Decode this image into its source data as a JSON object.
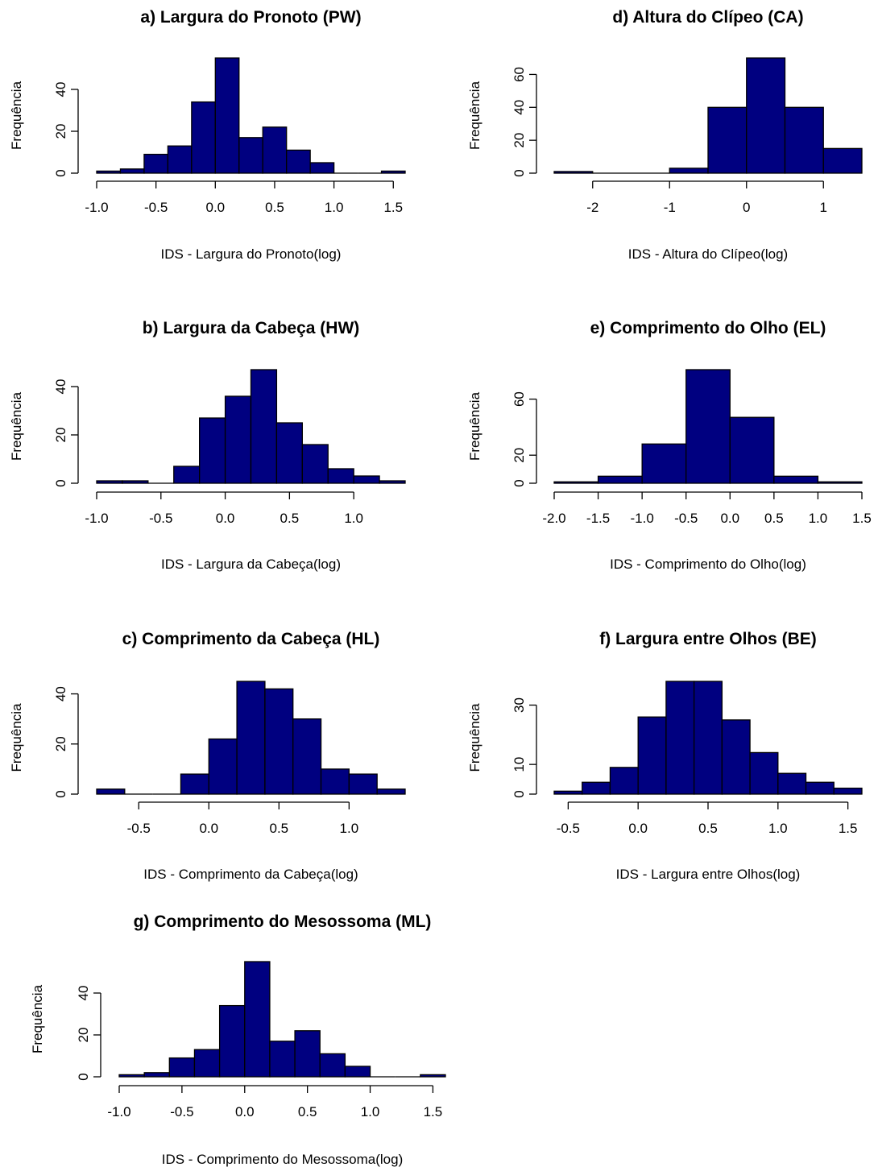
{
  "figure": {
    "bar_color": "#000080",
    "edge_color": "#000000",
    "background": "#ffffff"
  },
  "chart_data": [
    {
      "type": "bar",
      "title": "a) Largura do Pronoto (PW)",
      "xlabel": "IDS - Largura do Pronoto(log)",
      "ylabel": "Frequência",
      "xlim": [
        -1.0,
        1.6
      ],
      "ylim": [
        0,
        55
      ],
      "x_ticks": [
        -1.0,
        -0.5,
        0.0,
        0.5,
        1.0,
        1.5
      ],
      "x_tick_labels": [
        "-1.0",
        "-0.5",
        "0.0",
        "0.5",
        "1.0",
        "1.5"
      ],
      "y_ticks": [
        0,
        20,
        40
      ],
      "y_tick_labels": [
        "0",
        "20",
        "40"
      ],
      "bin_edges": [
        -1.0,
        -0.8,
        -0.6,
        -0.4,
        -0.2,
        0.0,
        0.2,
        0.4,
        0.6,
        0.8,
        1.0,
        1.2,
        1.4,
        1.6
      ],
      "values": [
        1,
        2,
        9,
        13,
        34,
        55,
        17,
        22,
        11,
        5,
        0,
        0,
        1
      ]
    },
    {
      "type": "bar",
      "title": "b) Largura da Cabeça (HW)",
      "xlabel": "IDS - Largura da Cabeça(log)",
      "ylabel": "Frequência",
      "xlim": [
        -1.0,
        1.4
      ],
      "ylim": [
        0,
        47
      ],
      "x_ticks": [
        -1.0,
        -0.5,
        0.0,
        0.5,
        1.0
      ],
      "x_tick_labels": [
        "-1.0",
        "-0.5",
        "0.0",
        "0.5",
        "1.0"
      ],
      "y_ticks": [
        0,
        20,
        40
      ],
      "y_tick_labels": [
        "0",
        "20",
        "40"
      ],
      "bin_edges": [
        -1.0,
        -0.8,
        -0.6,
        -0.4,
        -0.2,
        0.0,
        0.2,
        0.4,
        0.6,
        0.8,
        1.0,
        1.2,
        1.4
      ],
      "values": [
        1,
        1,
        0,
        7,
        27,
        36,
        47,
        25,
        16,
        6,
        3,
        1
      ]
    },
    {
      "type": "bar",
      "title": "c) Comprimento da Cabeça (HL)",
      "xlabel": "IDS - Comprimento da Cabeça(log)",
      "ylabel": "Frequência",
      "xlim": [
        -0.8,
        1.4
      ],
      "ylim": [
        0,
        45
      ],
      "x_ticks": [
        -0.5,
        0.0,
        0.5,
        1.0
      ],
      "x_tick_labels": [
        "-0.5",
        "0.0",
        "0.5",
        "1.0"
      ],
      "y_ticks": [
        0,
        20,
        40
      ],
      "y_tick_labels": [
        "0",
        "20",
        "40"
      ],
      "bin_edges": [
        -0.8,
        -0.6,
        -0.4,
        -0.2,
        0.0,
        0.2,
        0.4,
        0.6,
        0.8,
        1.0,
        1.2,
        1.4
      ],
      "values": [
        2,
        0,
        0,
        8,
        22,
        45,
        42,
        30,
        10,
        8,
        2
      ]
    },
    {
      "type": "bar",
      "title": "d) Altura do Clípeo (CA)",
      "xlabel": "IDS - Altura do Clípeo(log)",
      "ylabel": "Frequência",
      "xlim": [
        -2.5,
        1.5
      ],
      "ylim": [
        0,
        70
      ],
      "x_ticks": [
        -2,
        -1,
        0,
        1
      ],
      "x_tick_labels": [
        "-2",
        "-1",
        "0",
        "1"
      ],
      "y_ticks": [
        0,
        20,
        40,
        60
      ],
      "y_tick_labels": [
        "0",
        "20",
        "40",
        "60"
      ],
      "bin_edges": [
        -2.5,
        -2.0,
        -1.5,
        -1.0,
        -0.5,
        0.0,
        0.5,
        1.0,
        1.5
      ],
      "values": [
        1,
        0,
        0,
        3,
        40,
        70,
        40,
        15
      ]
    },
    {
      "type": "bar",
      "title": "e) Comprimento do Olho (EL)",
      "xlabel": "IDS - Comprimento do Olho(log)",
      "ylabel": "Frequência",
      "xlim": [
        -2.0,
        1.5
      ],
      "ylim": [
        0,
        81
      ],
      "x_ticks": [
        -2.0,
        -1.5,
        -1.0,
        -0.5,
        0.0,
        0.5,
        1.0,
        1.5
      ],
      "x_tick_labels": [
        "-2.0",
        "-1.5",
        "-1.0",
        "-0.5",
        "0.0",
        "0.5",
        "1.0",
        "1.5"
      ],
      "y_ticks": [
        0,
        20,
        60
      ],
      "y_tick_labels": [
        "0",
        "20",
        "60"
      ],
      "bin_edges": [
        -2.0,
        -1.5,
        -1.0,
        -0.5,
        0.0,
        0.5,
        1.0,
        1.5
      ],
      "values": [
        1,
        5,
        28,
        81,
        47,
        5,
        1
      ]
    },
    {
      "type": "bar",
      "title": "f) Largura entre Olhos (BE)",
      "xlabel": "IDS - Largura entre Olhos(log)",
      "ylabel": "Frequência",
      "xlim": [
        -0.6,
        1.6
      ],
      "ylim": [
        0,
        38
      ],
      "x_ticks": [
        -0.5,
        0.0,
        0.5,
        1.0,
        1.5
      ],
      "x_tick_labels": [
        "-0.5",
        "0.0",
        "0.5",
        "1.0",
        "1.5"
      ],
      "y_ticks": [
        0,
        10,
        30
      ],
      "y_tick_labels": [
        "0",
        "10",
        "30"
      ],
      "bin_edges": [
        -0.6,
        -0.4,
        -0.2,
        0.0,
        0.2,
        0.4,
        0.6,
        0.8,
        1.0,
        1.2,
        1.4,
        1.6
      ],
      "values": [
        1,
        4,
        9,
        26,
        38,
        38,
        25,
        14,
        7,
        4,
        2
      ]
    },
    {
      "type": "bar",
      "title": "g) Comprimento do Mesossoma (ML)",
      "xlabel": "IDS - Comprimento do Mesossoma(log)",
      "ylabel": "Frequência",
      "xlim": [
        -1.0,
        1.6
      ],
      "ylim": [
        0,
        55
      ],
      "x_ticks": [
        -1.0,
        -0.5,
        0.0,
        0.5,
        1.0,
        1.5
      ],
      "x_tick_labels": [
        "-1.0",
        "-0.5",
        "0.0",
        "0.5",
        "1.0",
        "1.5"
      ],
      "y_ticks": [
        0,
        20,
        40
      ],
      "y_tick_labels": [
        "0",
        "20",
        "40"
      ],
      "bin_edges": [
        -1.0,
        -0.8,
        -0.6,
        -0.4,
        -0.2,
        0.0,
        0.2,
        0.4,
        0.6,
        0.8,
        1.0,
        1.2,
        1.4,
        1.6
      ],
      "values": [
        1,
        2,
        9,
        13,
        34,
        55,
        17,
        22,
        11,
        5,
        0,
        0,
        1
      ]
    }
  ]
}
